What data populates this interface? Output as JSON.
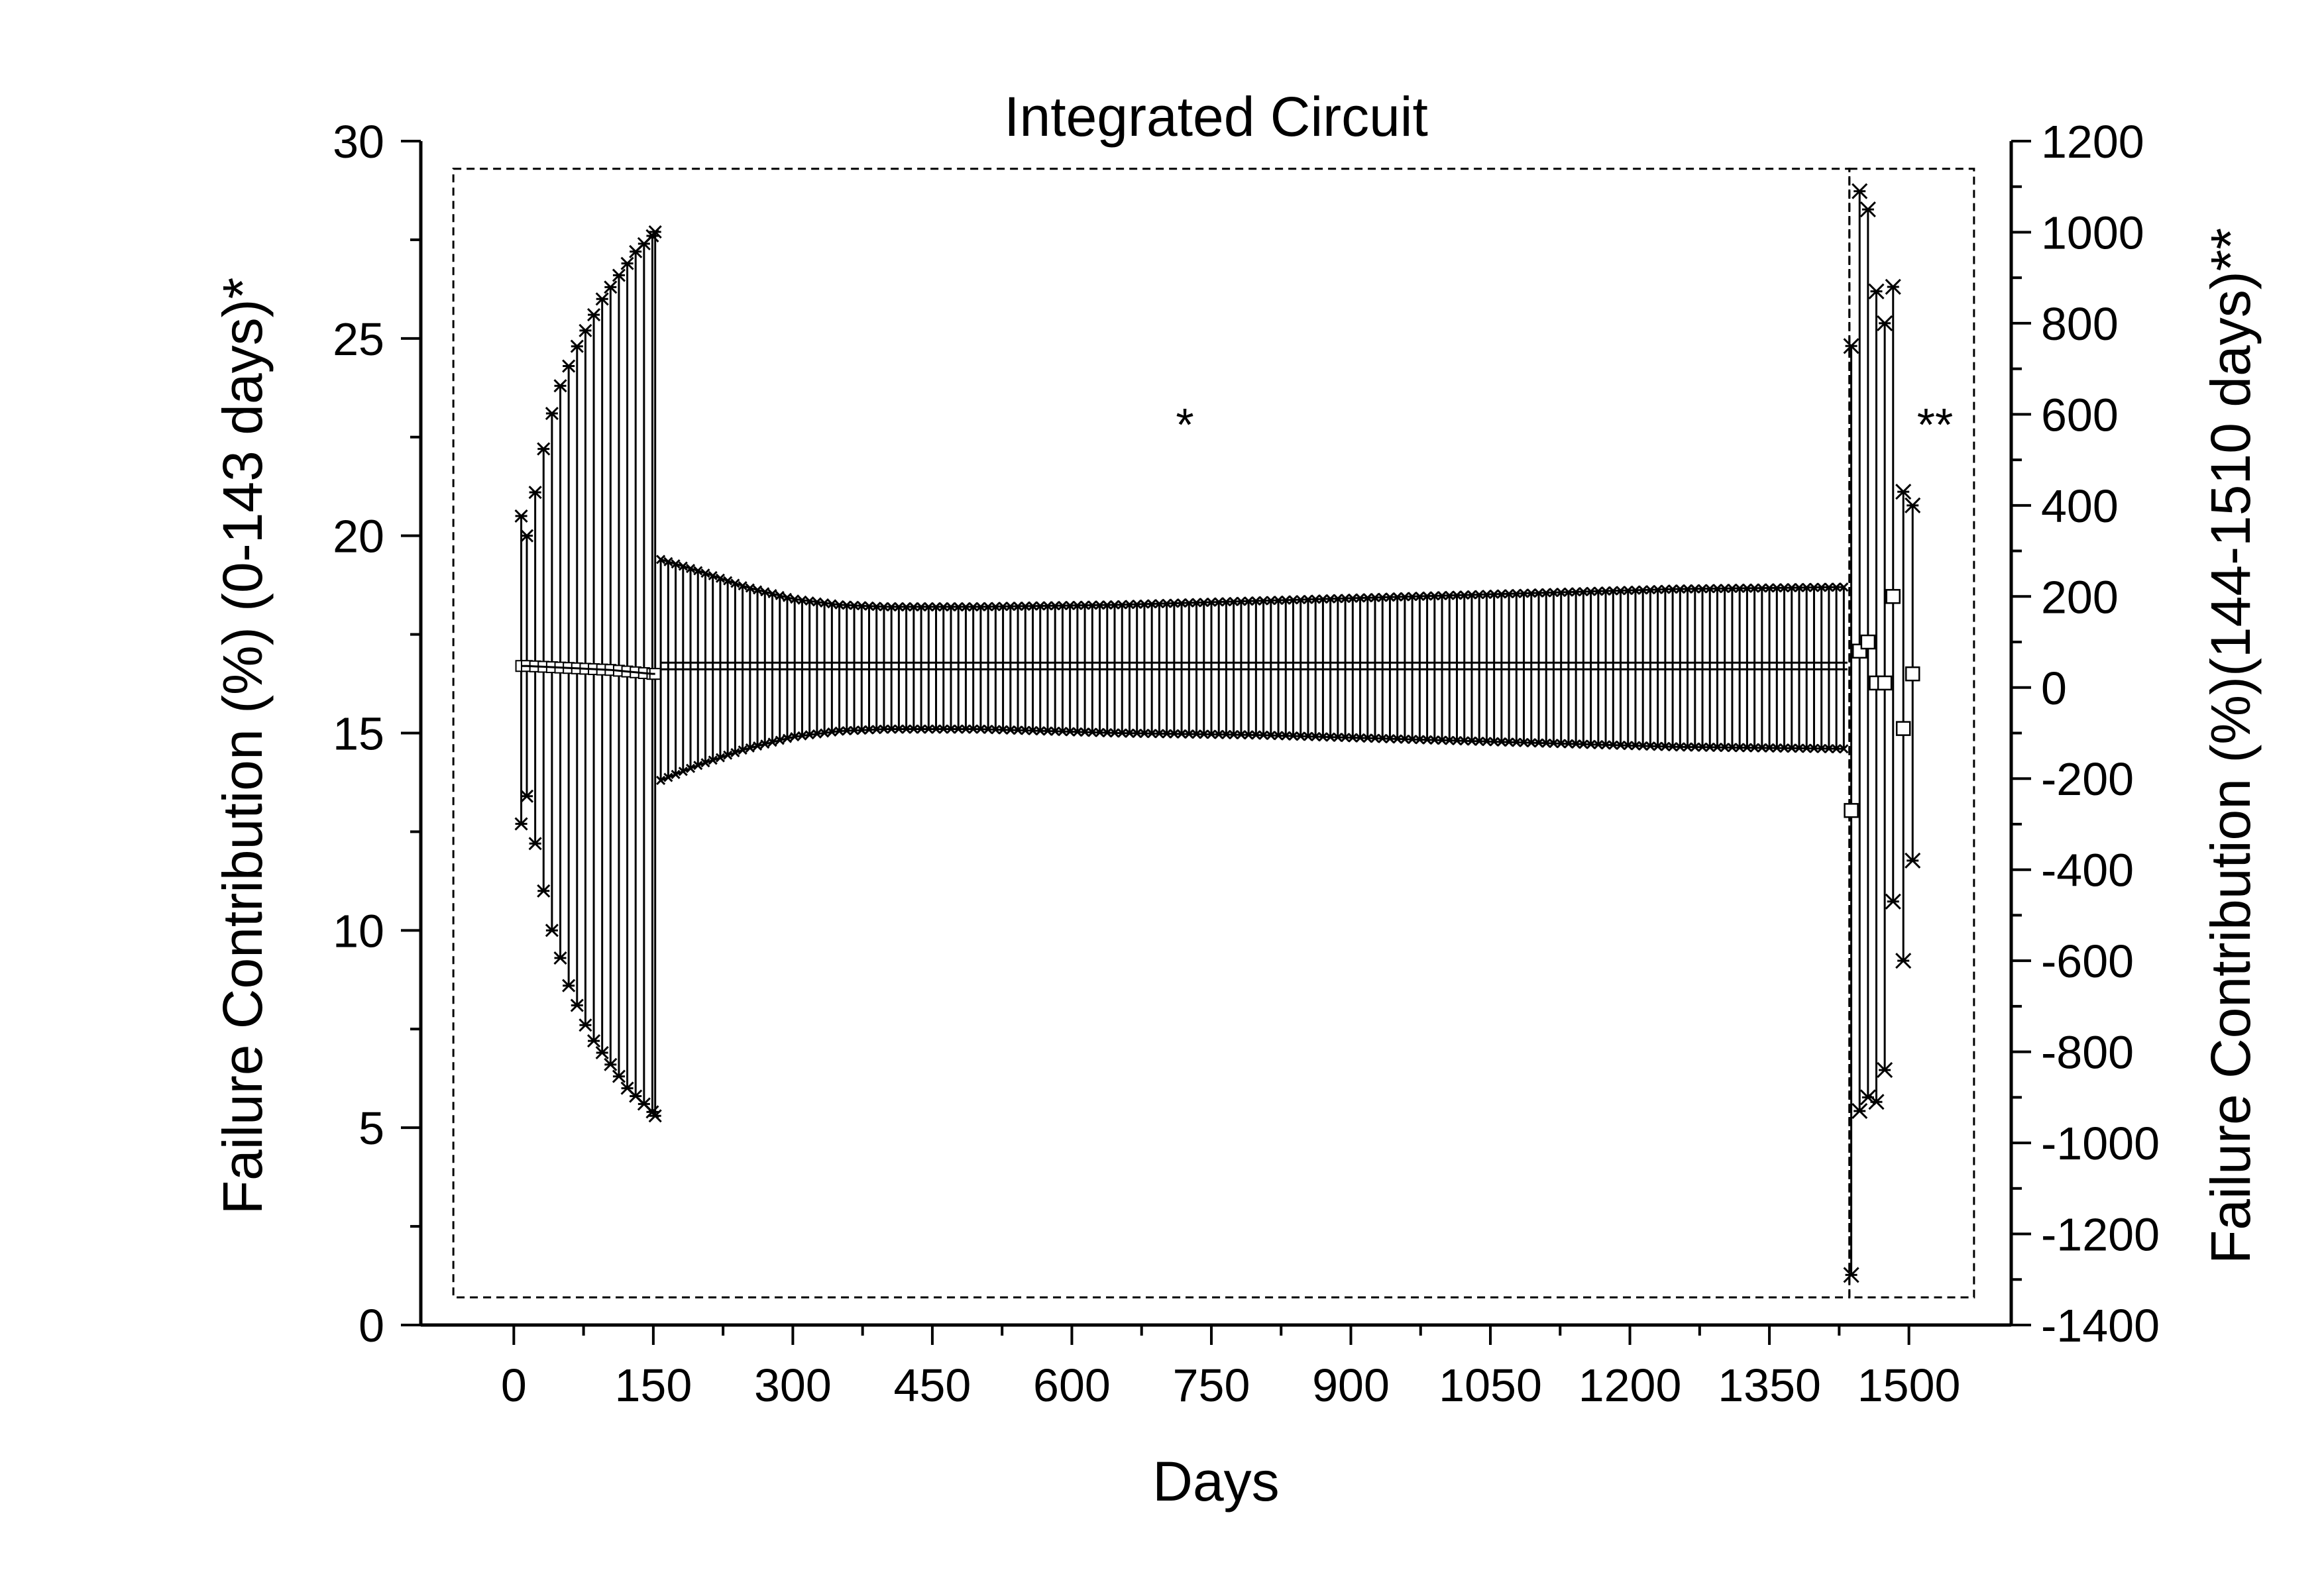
{
  "chart_data": {
    "type": "scatter",
    "title": "Integrated Circuit",
    "xlabel": "Days",
    "ylabel_left": "Failure Contribution (%) (0-143 days)*",
    "ylabel_right": "Failure Contribution (%)(144-1510 days)**",
    "xlim": [
      -100,
      1610
    ],
    "ylim_left": [
      0,
      30
    ],
    "ylim_right": [
      -1400,
      1200
    ],
    "x_ticks": [
      "0",
      "150",
      "300",
      "450",
      "600",
      "750",
      "900",
      "1050",
      "1200",
      "1350",
      "1500"
    ],
    "y_left_ticks": [
      "0",
      "5",
      "10",
      "15",
      "20",
      "25",
      "30"
    ],
    "y_right_ticks": [
      "-1400",
      "-1200",
      "-1000",
      "-800",
      "-600",
      "-400",
      "-200",
      "0",
      "200",
      "400",
      "600",
      "800",
      "1000",
      "1200"
    ],
    "grid": false,
    "legend": "none",
    "annotations": [
      {
        "text": "*",
        "x": 720,
        "y_left": 23
      },
      {
        "text": "**",
        "x": 1520,
        "y_left": 23
      }
    ],
    "series": [
      {
        "axis": "left",
        "days_range": "0-143",
        "x": [
          8,
          14,
          23,
          32,
          41,
          50,
          59,
          68,
          77,
          86,
          95,
          104,
          113,
          122,
          131,
          140,
          149,
          152
        ],
        "mean": [
          16.7,
          16.7,
          16.69,
          16.68,
          16.67,
          16.66,
          16.65,
          16.64,
          16.63,
          16.62,
          16.61,
          16.6,
          16.58,
          16.56,
          16.54,
          16.52,
          16.5,
          16.5
        ],
        "upper": [
          20.5,
          20,
          21.1,
          22.2,
          23.1,
          23.8,
          24.3,
          24.8,
          25.2,
          25.6,
          26,
          26.3,
          26.6,
          26.9,
          27.2,
          27.4,
          27.6,
          27.7
        ],
        "lower": [
          12.7,
          13.4,
          12.2,
          11,
          10,
          9.3,
          8.6,
          8.1,
          7.6,
          7.2,
          6.9,
          6.6,
          6.3,
          6,
          5.8,
          5.6,
          5.4,
          5.3
        ]
      },
      {
        "axis": "left",
        "days_range": "144-1435",
        "x_start": 158,
        "x_end": 1434,
        "mean": 16.7,
        "envelope_upper": [
          [
            158,
            19.4
          ],
          [
            200,
            19.1
          ],
          [
            250,
            18.7
          ],
          [
            300,
            18.4
          ],
          [
            350,
            18.25
          ],
          [
            400,
            18.2
          ],
          [
            500,
            18.2
          ],
          [
            650,
            18.25
          ],
          [
            800,
            18.35
          ],
          [
            950,
            18.45
          ],
          [
            1100,
            18.55
          ],
          [
            1250,
            18.65
          ],
          [
            1434,
            18.7
          ]
        ],
        "envelope_lower": [
          [
            158,
            13.8
          ],
          [
            200,
            14.2
          ],
          [
            250,
            14.6
          ],
          [
            300,
            14.9
          ],
          [
            350,
            15.05
          ],
          [
            400,
            15.1
          ],
          [
            500,
            15.1
          ],
          [
            650,
            15
          ],
          [
            800,
            14.95
          ],
          [
            950,
            14.85
          ],
          [
            1100,
            14.75
          ],
          [
            1250,
            14.65
          ],
          [
            1434,
            14.6
          ]
        ]
      },
      {
        "axis": "right",
        "days_range": "1436-1510",
        "x": [
          1438,
          1447,
          1456,
          1465,
          1474,
          1483,
          1494,
          1504
        ],
        "mean": [
          -270,
          80,
          100,
          10,
          10,
          200,
          -90,
          30
        ],
        "upper": [
          750,
          1090,
          1050,
          870,
          800,
          880,
          430,
          400
        ],
        "lower": [
          -1290,
          -930,
          -900,
          -910,
          -840,
          -470,
          -600,
          -380
        ]
      }
    ]
  }
}
